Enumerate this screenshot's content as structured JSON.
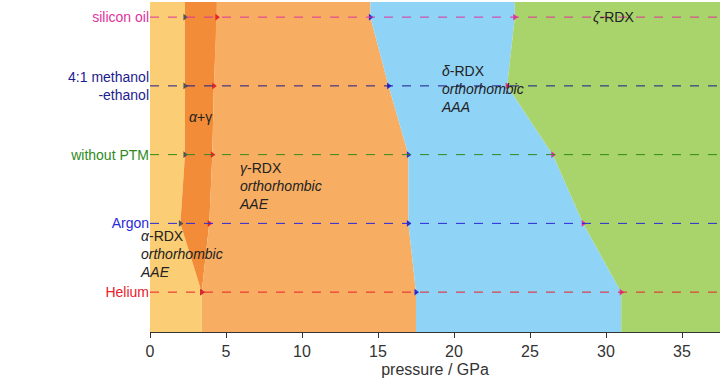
{
  "chart_data": {
    "type": "area",
    "x_label": "pressure / GPa",
    "xlim": [
      0,
      37.5
    ],
    "xticks": [
      0,
      5,
      10,
      15,
      20,
      25,
      30,
      35
    ],
    "grid": false,
    "categories": [
      "Helium",
      "Argon",
      "without PTM",
      "4:1 methanol\n-ethanol",
      "silicon oil"
    ],
    "category_colors": [
      "#e8202a",
      "#2a2ad6",
      "#2f8a1c",
      "#1c1c8e",
      "#e0329c"
    ],
    "boundaries": [
      {
        "marker_color": "#555555",
        "values": [
          3.4,
          2.0,
          2.3,
          2.3,
          2.3
        ]
      },
      {
        "marker_color": "#e8202a",
        "values": [
          3.4,
          3.9,
          4.1,
          4.2,
          4.4
        ]
      },
      {
        "marker_color": "#2a2ad6",
        "values": [
          17.5,
          17.0,
          17.0,
          15.7,
          14.5
        ]
      },
      {
        "marker_color": "#e0329c",
        "values": [
          31.0,
          28.5,
          26.5,
          23.5,
          24.0
        ]
      }
    ],
    "phases": [
      {
        "label": [
          "α-RDX",
          "orthorhombic",
          "AAE"
        ],
        "color": "#fbcd74",
        "label_x": 2.1,
        "label_y": 0.55
      },
      {
        "label": [
          "α+γ"
        ],
        "color": "#f28c38",
        "label_x": 3.3,
        "label_y": 2.55
      },
      {
        "label": [
          "γ-RDX",
          "orthorhombic",
          "AAE"
        ],
        "color": "#f8ae62",
        "label_x": 8.6,
        "label_y": 1.55
      },
      {
        "label": [
          "δ-RDX",
          "orthorhombic",
          "AAA"
        ],
        "color": "#8fd3f6",
        "label_x": 21.9,
        "label_y": 2.95
      },
      {
        "label": [
          "ζ-RDX"
        ],
        "color": "#a9d36b",
        "label_x": 30.5,
        "label_y": 4.0
      }
    ]
  }
}
